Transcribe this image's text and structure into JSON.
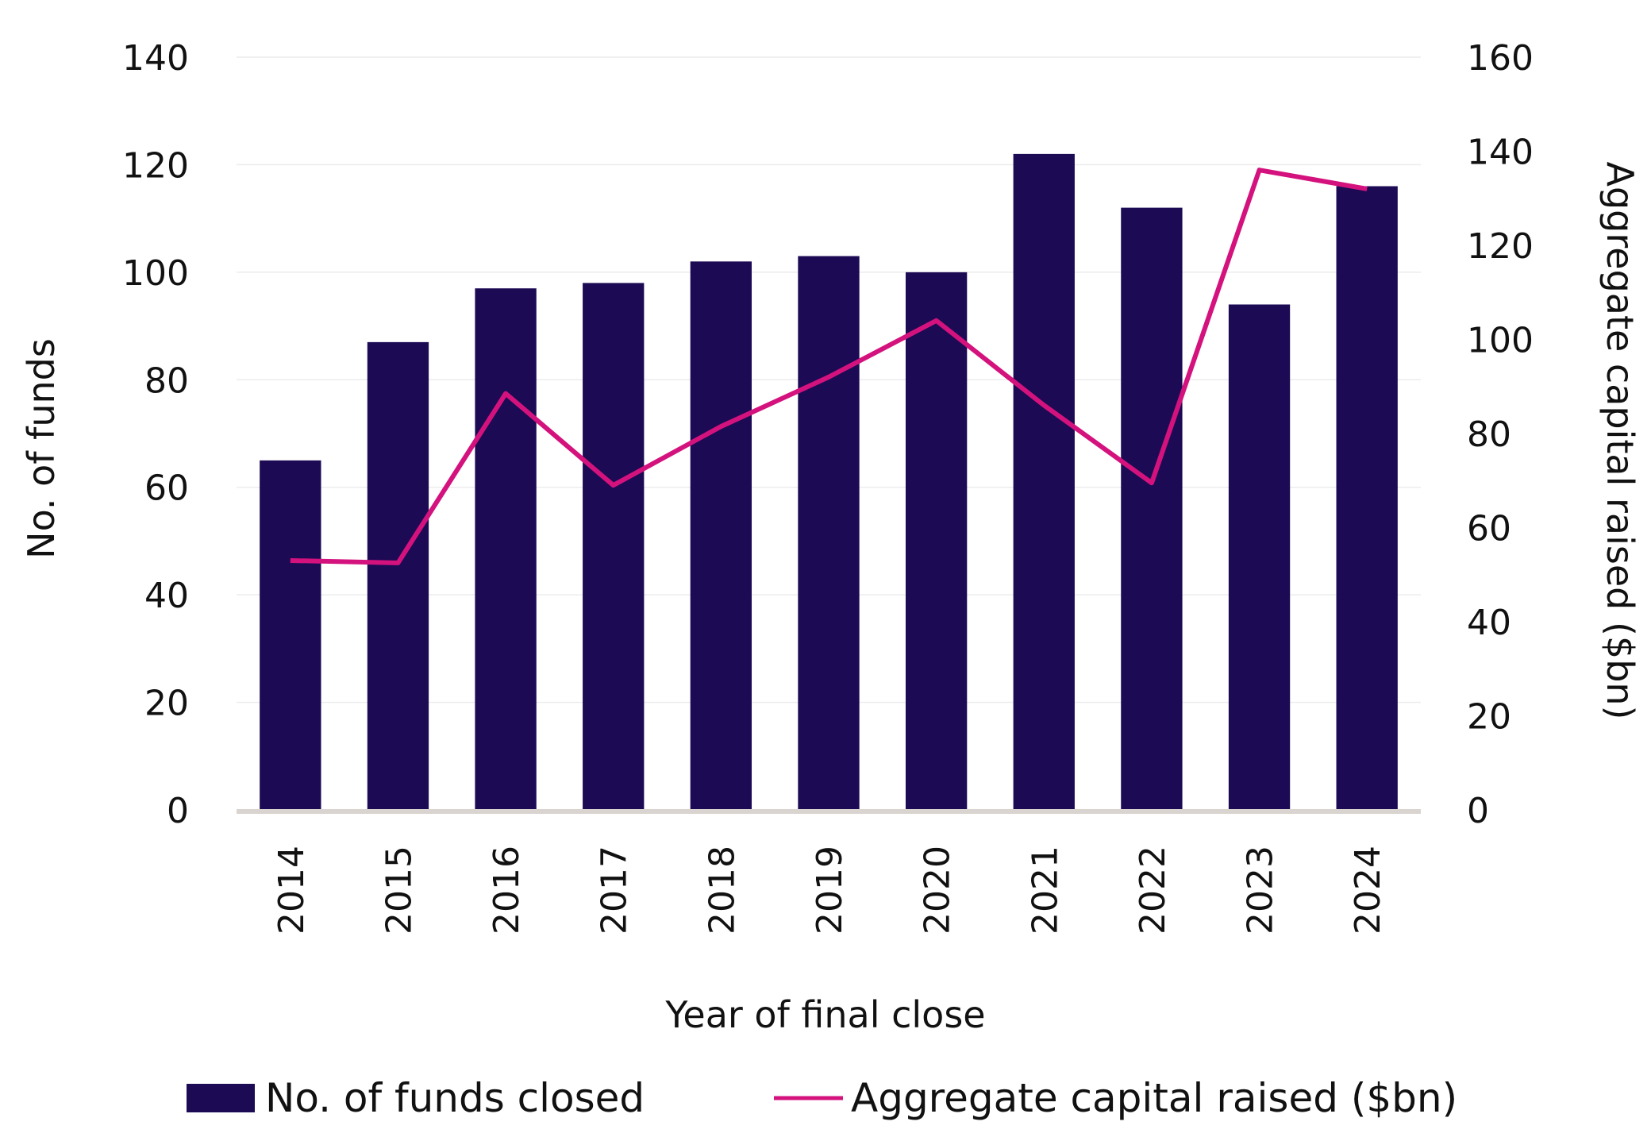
{
  "chart_data": {
    "type": "bar",
    "title": "",
    "categories": [
      "2014",
      "2015",
      "2016",
      "2017",
      "2018",
      "2019",
      "2020",
      "2021",
      "2022",
      "2023",
      "2024"
    ],
    "xlabel": "Year of final close",
    "ylabel": "No. of funds",
    "y2label": "Aggregate capital raised ($bn)",
    "ylim": [
      0,
      140
    ],
    "yticks": [
      0,
      20,
      40,
      60,
      80,
      100,
      120,
      140
    ],
    "y2lim": [
      0,
      160
    ],
    "y2ticks": [
      0,
      20,
      40,
      60,
      80,
      100,
      120,
      140,
      160
    ],
    "grid": true,
    "legend_position": "bottom",
    "series": [
      {
        "name": "No. of funds closed",
        "type": "bar",
        "axis": "left",
        "color": "#1c0a55",
        "values": [
          65,
          87,
          97,
          98,
          102,
          103,
          100,
          122,
          112,
          94,
          116
        ]
      },
      {
        "name": "Aggregate capital raised ($bn)",
        "type": "line",
        "axis": "right",
        "color": "#d4127d",
        "values": [
          53,
          52.5,
          88.5,
          69,
          81.5,
          92,
          104,
          86,
          69.5,
          136,
          132
        ]
      }
    ]
  }
}
